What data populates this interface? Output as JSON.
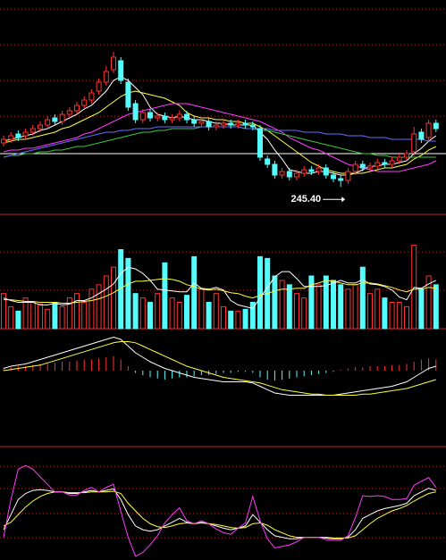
{
  "chart_data": [
    {
      "type": "candlestick",
      "up_color": "#ff3232",
      "down_color": "#54fcfc",
      "ylim": [
        230,
        350
      ],
      "open": [
        270,
        272,
        275,
        274,
        276,
        278,
        280,
        284,
        282,
        286,
        288,
        291,
        294,
        299,
        304,
        311,
        316,
        304,
        292,
        283,
        287,
        284,
        285,
        283,
        284,
        286,
        283,
        281,
        282,
        279,
        280,
        281,
        280,
        281,
        280,
        278,
        261,
        258,
        252,
        254,
        251,
        253,
        255,
        254,
        256,
        252,
        250,
        249,
        254,
        258,
        256,
        257,
        259,
        258,
        260,
        262,
        265,
        276,
        273,
        281
      ],
      "high": [
        274,
        276,
        277,
        278,
        280,
        282,
        285,
        286,
        288,
        290,
        293,
        296,
        300,
        306,
        313,
        321,
        318,
        306,
        294,
        289,
        289,
        287,
        287,
        286,
        288,
        288,
        285,
        284,
        284,
        282,
        283,
        283,
        283,
        283,
        282,
        280,
        263,
        260,
        256,
        256,
        255,
        257,
        257,
        258,
        258,
        254,
        252,
        256,
        260,
        260,
        259,
        261,
        261,
        262,
        264,
        266,
        279,
        278,
        283,
        283
      ],
      "low": [
        268,
        270,
        271,
        272,
        274,
        276,
        278,
        280,
        280,
        284,
        286,
        289,
        292,
        297,
        302,
        309,
        303,
        288,
        281,
        281,
        282,
        282,
        281,
        281,
        282,
        281,
        279,
        279,
        277,
        277,
        278,
        278,
        278,
        278,
        277,
        260,
        256,
        250,
        250,
        249,
        249,
        251,
        252,
        252,
        250,
        248,
        245.4,
        247,
        252,
        254,
        254,
        255,
        256,
        256,
        258,
        260,
        263,
        270,
        271,
        276
      ],
      "close": [
        272,
        274,
        273,
        276,
        278,
        280,
        283,
        282,
        286,
        288,
        291,
        294,
        298,
        304,
        310,
        318,
        305,
        290,
        283,
        287,
        284,
        285,
        283,
        284,
        286,
        283,
        281,
        282,
        279,
        280,
        281,
        280,
        281,
        280,
        279,
        262,
        258,
        252,
        254,
        251,
        253,
        255,
        254,
        256,
        252,
        250,
        249,
        254,
        258,
        256,
        257,
        259,
        258,
        260,
        262,
        264,
        275,
        272,
        281,
        278
      ],
      "series": [
        {
          "color": "#ffffff",
          "values": [
            271,
            272,
            273,
            274,
            275,
            277,
            278,
            280,
            282,
            284,
            286,
            289,
            291,
            295,
            299,
            305,
            307,
            305,
            301,
            297,
            290,
            286,
            285,
            284,
            285,
            284,
            283,
            283,
            282,
            281,
            281,
            280,
            280,
            280,
            280,
            276,
            272,
            266,
            261,
            255,
            254,
            253,
            253,
            254,
            254,
            253,
            252,
            252,
            253,
            255,
            257,
            257,
            258,
            258,
            259,
            260,
            264,
            267,
            271,
            274
          ]
        },
        {
          "color": "#ffff3c",
          "values": [
            270,
            271,
            272,
            272,
            273,
            274,
            275,
            276,
            278,
            279,
            281,
            283,
            285,
            287,
            290,
            293,
            296,
            298,
            299,
            298,
            297,
            296,
            295,
            293,
            291,
            287,
            285,
            284,
            284,
            283,
            283,
            282,
            282,
            281,
            281,
            279,
            277,
            274,
            271,
            268,
            265,
            262,
            259,
            257,
            255,
            254,
            253,
            253,
            253,
            253,
            254,
            255,
            256,
            256,
            257,
            258,
            261,
            263,
            266,
            268
          ]
        },
        {
          "color": "#ff3cff",
          "values": [
            265,
            266,
            266,
            267,
            267,
            268,
            269,
            270,
            271,
            272,
            273,
            275,
            276,
            278,
            280,
            282,
            284,
            286,
            287,
            288,
            289,
            290,
            291,
            292,
            292,
            292,
            291,
            290,
            289,
            288,
            287,
            286,
            285,
            284,
            283,
            282,
            280,
            278,
            276,
            273,
            271,
            269,
            267,
            266,
            264,
            262,
            260,
            258,
            257,
            256,
            255,
            254,
            254,
            254,
            254,
            255,
            256,
            257,
            258,
            260
          ]
        },
        {
          "color": "#3cc83c",
          "values": [
            262,
            263,
            263,
            264,
            264,
            265,
            265,
            266,
            266,
            267,
            268,
            268,
            269,
            270,
            271,
            272,
            273,
            274,
            275,
            276,
            276,
            277,
            277,
            278,
            278,
            278,
            278,
            279,
            279,
            279,
            279,
            279,
            279,
            278,
            278,
            277,
            277,
            276,
            275,
            274,
            273,
            272,
            271,
            270,
            269,
            268,
            267,
            266,
            265,
            264,
            264,
            263,
            263,
            262,
            262,
            262,
            262,
            262,
            262,
            262
          ]
        },
        {
          "color": "#6a6aff",
          "values": [
            262,
            263,
            264,
            265,
            266,
            267,
            268,
            269,
            270,
            271,
            272,
            273,
            274,
            275,
            276,
            276,
            277,
            277,
            278,
            278,
            278,
            279,
            279,
            279,
            279,
            279,
            279,
            279,
            279,
            279,
            279,
            279,
            279,
            278,
            278,
            278,
            278,
            277,
            277,
            277,
            277,
            276,
            276,
            276,
            275,
            275,
            275,
            274,
            274,
            274,
            273,
            273,
            273,
            272,
            272,
            272,
            272,
            272,
            271,
            271
          ]
        }
      ],
      "annotation": {
        "value": 245.4,
        "label": "245.40"
      }
    },
    {
      "type": "volume",
      "ylim": [
        0,
        120
      ],
      "values": [
        40,
        25,
        20,
        35,
        30,
        28,
        22,
        30,
        25,
        35,
        40,
        30,
        45,
        50,
        60,
        70,
        90,
        80,
        40,
        35,
        30,
        40,
        75,
        35,
        30,
        38,
        82,
        45,
        30,
        40,
        25,
        20,
        20,
        22,
        30,
        82,
        80,
        60,
        55,
        50,
        40,
        35,
        60,
        50,
        60,
        55,
        50,
        45,
        50,
        70,
        40,
        45,
        35,
        30,
        30,
        25,
        95,
        45,
        60,
        50
      ],
      "series": [
        {
          "color": "#ffffff",
          "values": [
            35,
            32,
            30,
            30,
            30,
            27,
            27,
            29,
            27,
            28,
            32,
            32,
            35,
            40,
            45,
            51,
            63,
            70,
            68,
            63,
            55,
            45,
            44,
            43,
            42,
            42,
            52,
            46,
            45,
            47,
            44,
            32,
            27,
            25,
            23,
            35,
            47,
            59,
            65,
            65,
            57,
            48,
            48,
            48,
            49,
            52,
            55,
            52,
            52,
            56,
            51,
            50,
            48,
            44,
            36,
            33,
            47,
            46,
            51,
            55
          ]
        },
        {
          "color": "#ffff3c",
          "values": [
            33,
            33,
            32,
            31,
            31,
            30,
            30,
            30,
            29,
            29,
            30,
            31,
            32,
            34,
            37,
            41,
            46,
            51,
            54,
            54,
            55,
            56,
            57,
            56,
            54,
            50,
            48,
            45,
            44,
            45,
            43,
            41,
            40,
            37,
            35,
            38,
            40,
            43,
            45,
            45,
            46,
            46,
            50,
            52,
            55,
            54,
            52,
            50,
            50,
            52,
            52,
            51,
            49,
            47,
            44,
            42,
            45,
            45,
            47,
            46
          ]
        }
      ]
    },
    {
      "type": "macd",
      "ylim": [
        -14,
        18
      ],
      "up_color": "#ff3232",
      "down_color": "#54fcfc",
      "histogram": [
        1,
        1.5,
        2,
        2,
        2.5,
        3,
        3,
        3.5,
        4,
        4,
        4.5,
        5,
        5,
        5.5,
        6,
        6.5,
        5,
        2,
        -1,
        -2,
        -3,
        -3.5,
        -4,
        -3.5,
        -3,
        -3,
        -2.5,
        -2,
        -2,
        -1.5,
        -1,
        -1,
        -0.5,
        -0.5,
        -1,
        -3,
        -4,
        -4.5,
        -4,
        -3.5,
        -3,
        -2.5,
        -2,
        -1.5,
        -1,
        -0.5,
        0.5,
        1,
        1.5,
        1.5,
        2,
        2,
        2,
        2.5,
        2.5,
        3,
        4,
        5,
        5.5,
        5
      ],
      "series": [
        {
          "color": "#ffffff",
          "values": [
            1,
            2,
            2.5,
            3,
            4,
            5,
            6,
            7,
            8,
            9,
            10,
            11,
            12,
            13,
            14,
            15,
            14,
            11,
            8,
            6,
            4,
            2.5,
            1,
            0,
            -1,
            -2,
            -3,
            -3.5,
            -4,
            -4.5,
            -5,
            -5,
            -5,
            -5,
            -5.5,
            -7,
            -8.5,
            -10,
            -10.5,
            -11,
            -11,
            -11,
            -11,
            -11,
            -11,
            -11,
            -10.5,
            -10,
            -9.5,
            -9,
            -8.5,
            -8,
            -7.5,
            -7,
            -6,
            -5,
            -3,
            -1,
            1,
            2
          ]
        },
        {
          "color": "#ffff3c",
          "values": [
            0,
            0.5,
            1,
            1.5,
            2,
            2.5,
            3.5,
            4.5,
            5.5,
            6.5,
            7.5,
            8.5,
            9.5,
            10.5,
            11.5,
            12.5,
            13,
            13,
            12.5,
            11,
            9.5,
            8,
            6.5,
            5,
            3.5,
            2,
            1,
            0,
            -1,
            -2,
            -3,
            -3.5,
            -4,
            -4.5,
            -5,
            -5.5,
            -6.5,
            -7.5,
            -8.5,
            -9,
            -9.5,
            -10,
            -10.5,
            -10.5,
            -11,
            -11,
            -11,
            -11,
            -11,
            -10.5,
            -10.5,
            -10,
            -9.5,
            -9,
            -8.5,
            -8,
            -7,
            -6,
            -5,
            -4
          ]
        }
      ]
    },
    {
      "type": "kdj",
      "ylim": [
        -20,
        130
      ],
      "series": [
        {
          "color": "#ffffff",
          "values": [
            20,
            40,
            60,
            68,
            72,
            73,
            72,
            70,
            70,
            68,
            68,
            70,
            72,
            70,
            72,
            74,
            60,
            40,
            25,
            20,
            18,
            20,
            25,
            30,
            35,
            30,
            28,
            30,
            28,
            25,
            22,
            20,
            22,
            25,
            40,
            30,
            20,
            12,
            10,
            8,
            8,
            10,
            10,
            10,
            9,
            8,
            8,
            10,
            20,
            35,
            40,
            45,
            48,
            50,
            52,
            55,
            65,
            70,
            75,
            72
          ]
        },
        {
          "color": "#ffff3c",
          "values": [
            25,
            30,
            40,
            50,
            58,
            64,
            68,
            70,
            70,
            69,
            69,
            69,
            70,
            70,
            70,
            71,
            68,
            55,
            45,
            35,
            28,
            24,
            23,
            25,
            28,
            29,
            28,
            29,
            28,
            27,
            25,
            23,
            22,
            23,
            28,
            29,
            26,
            20,
            16,
            12,
            10,
            10,
            10,
            10,
            10,
            9,
            9,
            9,
            12,
            20,
            28,
            35,
            40,
            45,
            48,
            52,
            58,
            63,
            68,
            70
          ]
        },
        {
          "color": "#ff3cff",
          "values": [
            10,
            60,
            100,
            105,
            100,
            90,
            80,
            70,
            70,
            66,
            66,
            72,
            76,
            70,
            76,
            80,
            44,
            10,
            -15,
            -10,
            0,
            12,
            29,
            40,
            49,
            32,
            28,
            32,
            28,
            21,
            16,
            14,
            22,
            29,
            64,
            32,
            8,
            -4,
            -2,
            0,
            4,
            10,
            10,
            10,
            7,
            6,
            6,
            12,
            36,
            65,
            64,
            65,
            64,
            60,
            60,
            61,
            79,
            84,
            89,
            76
          ]
        }
      ]
    }
  ]
}
